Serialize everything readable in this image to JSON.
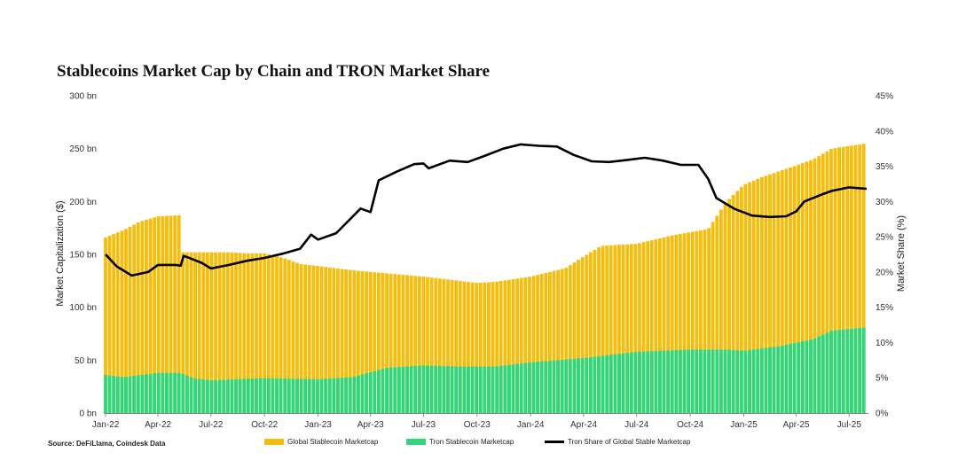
{
  "chart_data": {
    "type": "bar+line",
    "title": "Stablecoins Market Cap by Chain and TRON Market Share",
    "ylabel_left": "Market Capitalization ($)",
    "ylabel_right": "Market Share (%)",
    "ylim_left": [
      0,
      300
    ],
    "ylim_right": [
      0,
      45
    ],
    "yticks_left": [
      "0 bn",
      "50 bn",
      "100 bn",
      "150 bn",
      "200 bn",
      "250 bn",
      "300 bn"
    ],
    "yticks_right": [
      "0%",
      "5%",
      "10%",
      "15%",
      "20%",
      "25%",
      "30%",
      "35%",
      "40%",
      "45%"
    ],
    "x_start": "2022-01-01",
    "x_end": "2025-07-31",
    "xticks": [
      "Jan-22",
      "Apr-22",
      "Jul-22",
      "Oct-22",
      "Jan-23",
      "Apr-23",
      "Jul-23",
      "Oct-23",
      "Jan-24",
      "Apr-24",
      "Jul-24",
      "Oct-24",
      "Jan-25",
      "Apr-25",
      "Jul-25"
    ],
    "xtick_dates": [
      "2022-01-01",
      "2022-04-01",
      "2022-07-01",
      "2022-10-01",
      "2023-01-01",
      "2023-04-01",
      "2023-07-01",
      "2023-10-01",
      "2024-01-01",
      "2024-04-01",
      "2024-07-01",
      "2024-10-01",
      "2025-01-01",
      "2025-04-01",
      "2025-07-01"
    ],
    "series": [
      {
        "name": "Global Stablecoin Marketcap",
        "type": "bar",
        "axis": "left",
        "color": "#f5bd0d",
        "points": [
          [
            "2022-01-01",
            166
          ],
          [
            "2022-02-01",
            173
          ],
          [
            "2022-03-01",
            181
          ],
          [
            "2022-04-01",
            186
          ],
          [
            "2022-05-10",
            187
          ],
          [
            "2022-05-12",
            152
          ],
          [
            "2022-06-01",
            152
          ],
          [
            "2022-07-01",
            152
          ],
          [
            "2022-08-01",
            152
          ],
          [
            "2022-09-01",
            151
          ],
          [
            "2022-10-01",
            151
          ],
          [
            "2022-11-01",
            147
          ],
          [
            "2022-12-01",
            141
          ],
          [
            "2023-01-01",
            139
          ],
          [
            "2023-03-01",
            135
          ],
          [
            "2023-05-01",
            132
          ],
          [
            "2023-07-01",
            129
          ],
          [
            "2023-09-01",
            125
          ],
          [
            "2023-10-01",
            123
          ],
          [
            "2023-11-01",
            124
          ],
          [
            "2024-01-01",
            129
          ],
          [
            "2024-03-01",
            137
          ],
          [
            "2024-04-01",
            148
          ],
          [
            "2024-05-01",
            158
          ],
          [
            "2024-07-01",
            160
          ],
          [
            "2024-09-01",
            168
          ],
          [
            "2024-10-01",
            171
          ],
          [
            "2024-11-01",
            174
          ],
          [
            "2024-12-01",
            199
          ],
          [
            "2025-01-01",
            216
          ],
          [
            "2025-02-01",
            223
          ],
          [
            "2025-04-01",
            234
          ],
          [
            "2025-05-01",
            240
          ],
          [
            "2025-06-01",
            250
          ],
          [
            "2025-07-31",
            255
          ]
        ]
      },
      {
        "name": "Tron Stablecoin Marketcap",
        "type": "bar",
        "axis": "left",
        "color": "#2fd67c",
        "points": [
          [
            "2022-01-01",
            36
          ],
          [
            "2022-02-01",
            34
          ],
          [
            "2022-03-01",
            36
          ],
          [
            "2022-04-01",
            38
          ],
          [
            "2022-05-10",
            38
          ],
          [
            "2022-06-01",
            33
          ],
          [
            "2022-07-01",
            31
          ],
          [
            "2022-10-01",
            33
          ],
          [
            "2023-01-01",
            32
          ],
          [
            "2023-03-01",
            34
          ],
          [
            "2023-05-01",
            43
          ],
          [
            "2023-07-01",
            45
          ],
          [
            "2023-09-01",
            44
          ],
          [
            "2023-11-01",
            44
          ],
          [
            "2024-01-01",
            48
          ],
          [
            "2024-04-01",
            52
          ],
          [
            "2024-07-01",
            58
          ],
          [
            "2024-10-01",
            60
          ],
          [
            "2024-12-01",
            60
          ],
          [
            "2025-01-01",
            59
          ],
          [
            "2025-03-01",
            63
          ],
          [
            "2025-05-01",
            70
          ],
          [
            "2025-06-01",
            78
          ],
          [
            "2025-07-31",
            81
          ]
        ]
      },
      {
        "name": "Tron Share of Global Stable Marketcap",
        "type": "line",
        "axis": "right",
        "color": "#000000",
        "points": [
          [
            "2022-01-01",
            22.5
          ],
          [
            "2022-01-20",
            20.8
          ],
          [
            "2022-02-15",
            19.5
          ],
          [
            "2022-03-15",
            20.0
          ],
          [
            "2022-04-01",
            21.0
          ],
          [
            "2022-05-01",
            21.0
          ],
          [
            "2022-05-10",
            20.9
          ],
          [
            "2022-05-15",
            22.3
          ],
          [
            "2022-06-15",
            21.3
          ],
          [
            "2022-07-01",
            20.5
          ],
          [
            "2022-08-01",
            21.0
          ],
          [
            "2022-09-01",
            21.6
          ],
          [
            "2022-10-01",
            22.0
          ],
          [
            "2022-11-01",
            22.6
          ],
          [
            "2022-12-01",
            23.3
          ],
          [
            "2022-12-20",
            25.3
          ],
          [
            "2023-01-01",
            24.6
          ],
          [
            "2023-02-01",
            25.5
          ],
          [
            "2023-03-15",
            29.0
          ],
          [
            "2023-04-01",
            28.5
          ],
          [
            "2023-04-15",
            33.0
          ],
          [
            "2023-05-15",
            34.2
          ],
          [
            "2023-06-15",
            35.3
          ],
          [
            "2023-07-01",
            35.4
          ],
          [
            "2023-07-10",
            34.7
          ],
          [
            "2023-08-15",
            35.8
          ],
          [
            "2023-09-15",
            35.6
          ],
          [
            "2023-10-15",
            36.5
          ],
          [
            "2023-11-15",
            37.5
          ],
          [
            "2023-12-15",
            38.1
          ],
          [
            "2024-01-15",
            37.9
          ],
          [
            "2024-02-15",
            37.8
          ],
          [
            "2024-03-15",
            36.6
          ],
          [
            "2024-04-15",
            35.7
          ],
          [
            "2024-05-15",
            35.6
          ],
          [
            "2024-06-15",
            35.9
          ],
          [
            "2024-07-15",
            36.2
          ],
          [
            "2024-08-15",
            35.8
          ],
          [
            "2024-09-15",
            35.2
          ],
          [
            "2024-10-15",
            35.2
          ],
          [
            "2024-11-01",
            33.2
          ],
          [
            "2024-11-15",
            30.5
          ],
          [
            "2024-12-15",
            29.0
          ],
          [
            "2025-01-15",
            28.0
          ],
          [
            "2025-02-15",
            27.8
          ],
          [
            "2025-03-15",
            27.9
          ],
          [
            "2025-04-01",
            28.6
          ],
          [
            "2025-04-15",
            30.0
          ],
          [
            "2025-05-15",
            31.0
          ],
          [
            "2025-06-01",
            31.5
          ],
          [
            "2025-07-01",
            32.0
          ],
          [
            "2025-07-31",
            31.8
          ]
        ]
      }
    ],
    "legend_position": "bottom",
    "grid": false
  },
  "source": "Source: DeFiLlama, Coindesk Data"
}
